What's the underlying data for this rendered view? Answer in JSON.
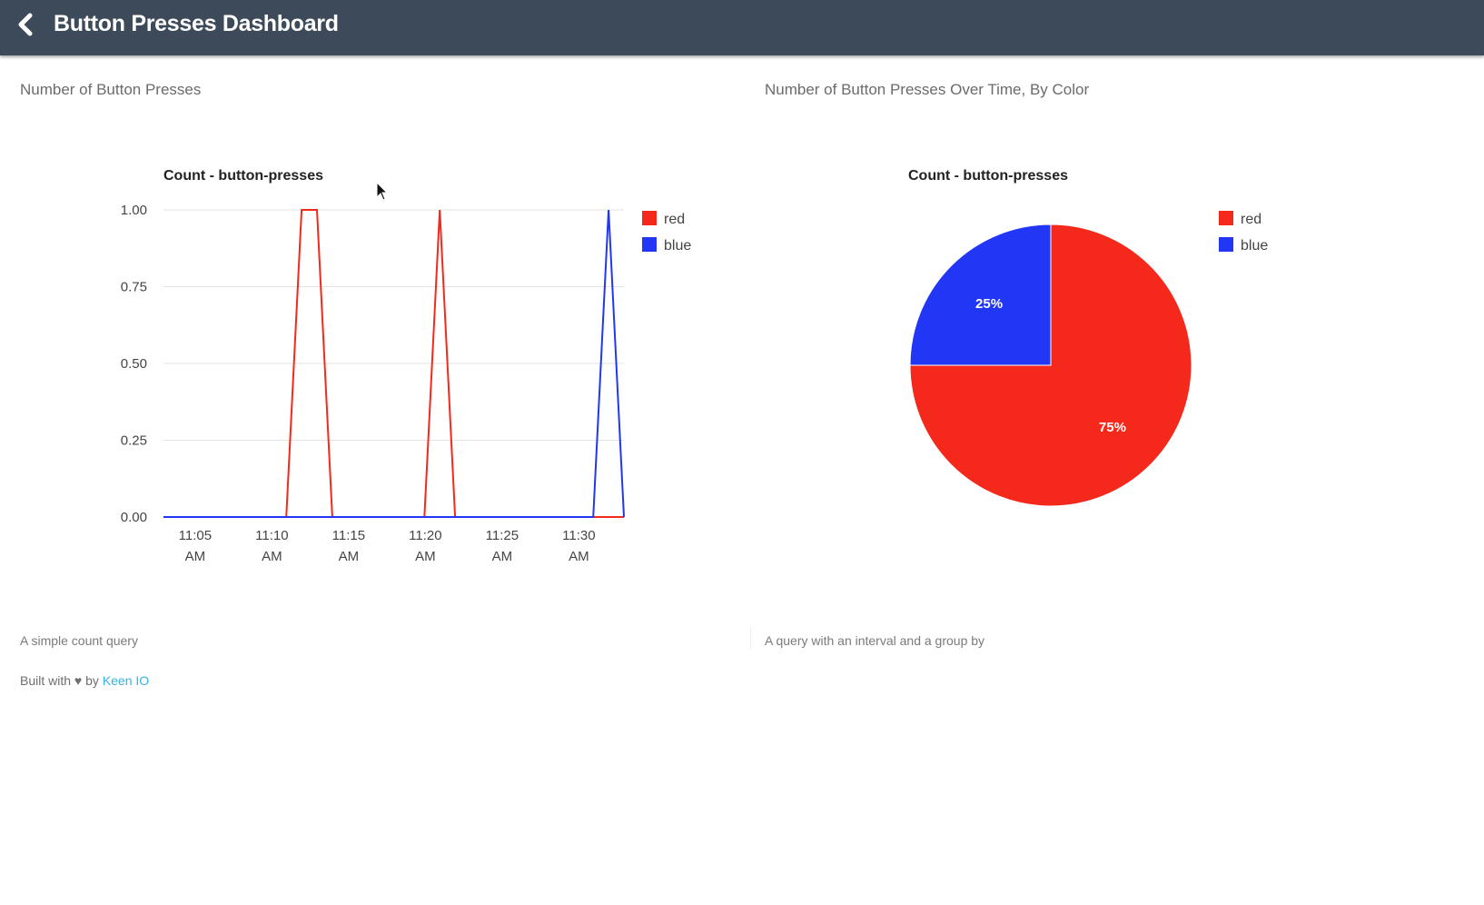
{
  "header": {
    "title": "Button Presses Dashboard",
    "back_icon": "chevron-left-icon"
  },
  "colors": {
    "header_bg": "#3d4a5a",
    "red": "#f5281c",
    "blue": "#2236f5",
    "link": "#2fb5e8"
  },
  "panels": {
    "left": {
      "title": "Number of Button Presses",
      "note": "A simple count query"
    },
    "right": {
      "title": "Number of Button Presses Over Time, By Color",
      "note": "A query with an interval and a group by"
    }
  },
  "footer": {
    "prefix": "Built with",
    "heart": "♥",
    "by": "by",
    "link_label": "Keen IO"
  },
  "chart_data": [
    {
      "type": "line",
      "title": "Count - button-presses",
      "xlabel": "",
      "ylabel": "",
      "ylim": [
        0,
        1
      ],
      "yticks": [
        "0.00",
        "0.25",
        "0.50",
        "0.75",
        "1.00"
      ],
      "xticks": [
        {
          "line1": "11:05",
          "line2": "AM",
          "value": 0
        },
        {
          "line1": "11:10",
          "line2": "AM",
          "value": 5
        },
        {
          "line1": "11:15",
          "line2": "AM",
          "value": 10
        },
        {
          "line1": "11:20",
          "line2": "AM",
          "value": 15
        },
        {
          "line1": "11:25",
          "line2": "AM",
          "value": 20
        },
        {
          "line1": "11:30",
          "line2": "AM",
          "value": 25
        }
      ],
      "x_minutes_after_11_04": [
        0,
        8,
        9,
        10,
        11,
        17,
        18,
        19,
        28,
        29,
        30
      ],
      "grid": true,
      "legend": "right",
      "series": [
        {
          "name": "red",
          "color": "#f5281c",
          "values": [
            0,
            0,
            1,
            1,
            0,
            0,
            1,
            0,
            0,
            0,
            0
          ]
        },
        {
          "name": "blue",
          "color": "#2236f5",
          "values": [
            0,
            0,
            0,
            0,
            0,
            0,
            0,
            0,
            0,
            1,
            0
          ]
        }
      ]
    },
    {
      "type": "pie",
      "title": "Count - button-presses",
      "legend": "right",
      "slices": [
        {
          "name": "red",
          "value": 75,
          "label": "75%",
          "color": "#f5281c"
        },
        {
          "name": "blue",
          "value": 25,
          "label": "25%",
          "color": "#2236f5"
        }
      ]
    }
  ]
}
